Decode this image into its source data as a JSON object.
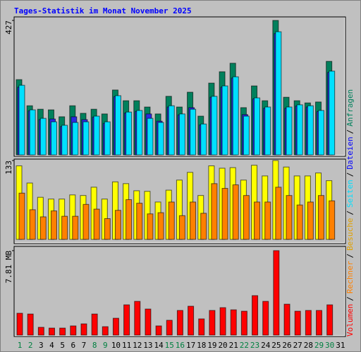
{
  "legend_separator": "/",
  "chart_data": [
    {
      "type": "bar",
      "title": "Tages-Statistik im Monat November 2025",
      "ylim": [
        0,
        427
      ],
      "yticks": [
        427
      ],
      "series": [
        {
          "name": "Anfragen",
          "color": "#00805c",
          "values": [
            239,
            156,
            145,
            143,
            121,
            156,
            132,
            145,
            130,
            206,
            172,
            172,
            152,
            130,
            186,
            152,
            199,
            123,
            228,
            264,
            291,
            150,
            219,
            172,
            427,
            183,
            172,
            165,
            168,
            297,
            0
          ]
        },
        {
          "name": "Dateien",
          "color": "#2a2ae0",
          "values": [
            215,
            140,
            112,
            114,
            90,
            121,
            112,
            120,
            100,
            185,
            133,
            138,
            130,
            107,
            152,
            127,
            150,
            95,
            183,
            215,
            244,
            128,
            178,
            148,
            385,
            148,
            155,
            152,
            138,
            262,
            0
          ]
        },
        {
          "name": "Seiten",
          "color": "#00e0ff",
          "values": [
            221,
            143,
            116,
            105,
            94,
            103,
            105,
            123,
            105,
            188,
            136,
            141,
            116,
            103,
            156,
            130,
            145,
            98,
            186,
            219,
            248,
            123,
            181,
            152,
            391,
            152,
            159,
            156,
            141,
            266,
            0
          ]
        }
      ]
    },
    {
      "type": "bar",
      "ylim": [
        0,
        133
      ],
      "yticks": [
        133
      ],
      "series": [
        {
          "name": "Besuche",
          "color": "#ffff00",
          "values": [
            124,
            95,
            71,
            68,
            68,
            75,
            74,
            88,
            68,
            97,
            94,
            82,
            81,
            63,
            83,
            100,
            113,
            74,
            124,
            120,
            121,
            100,
            125,
            107,
            133,
            122,
            107,
            107,
            112,
            99,
            0
          ]
        },
        {
          "name": "Rechner",
          "color": "#ff8000",
          "values": [
            78,
            50,
            38,
            48,
            39,
            39,
            59,
            51,
            35,
            49,
            67,
            61,
            43,
            45,
            63,
            40,
            63,
            44,
            94,
            86,
            92,
            74,
            63,
            63,
            88,
            74,
            58,
            63,
            74,
            65,
            0
          ]
        }
      ]
    },
    {
      "type": "bar",
      "ylim": [
        0,
        7.81
      ],
      "yticks": [
        {
          "value": 7.81,
          "label": "7.81 MB"
        }
      ],
      "categories": [
        "1",
        "2",
        "3",
        "4",
        "5",
        "6",
        "7",
        "8",
        "9",
        "10",
        "11",
        "12",
        "13",
        "14",
        "15",
        "16",
        "17",
        "18",
        "19",
        "20",
        "21",
        "22",
        "23",
        "24",
        "25",
        "26",
        "27",
        "28",
        "29",
        "30",
        "31"
      ],
      "category_colors": [
        "#008040",
        "#008040",
        "#000000",
        "#000000",
        "#000000",
        "#000000",
        "#000000",
        "#008040",
        "#008040",
        "#000000",
        "#000000",
        "#000000",
        "#000000",
        "#000000",
        "#008040",
        "#008040",
        "#000000",
        "#000000",
        "#000000",
        "#000000",
        "#000000",
        "#008040",
        "#008040",
        "#000000",
        "#000000",
        "#000000",
        "#000000",
        "#000000",
        "#008040",
        "#008040",
        "#000000"
      ],
      "series": [
        {
          "name": "Volumen",
          "color": "#ff0000",
          "values": [
            2.02,
            1.95,
            0.72,
            0.65,
            0.65,
            0.85,
            1.04,
            1.95,
            0.78,
            1.56,
            2.8,
            3.12,
            2.41,
            0.85,
            1.37,
            2.28,
            2.67,
            1.5,
            2.28,
            2.54,
            2.34,
            2.21,
            3.65,
            3.12,
            7.81,
            2.86,
            2.21,
            2.28,
            2.28,
            2.8,
            0
          ]
        }
      ]
    }
  ]
}
